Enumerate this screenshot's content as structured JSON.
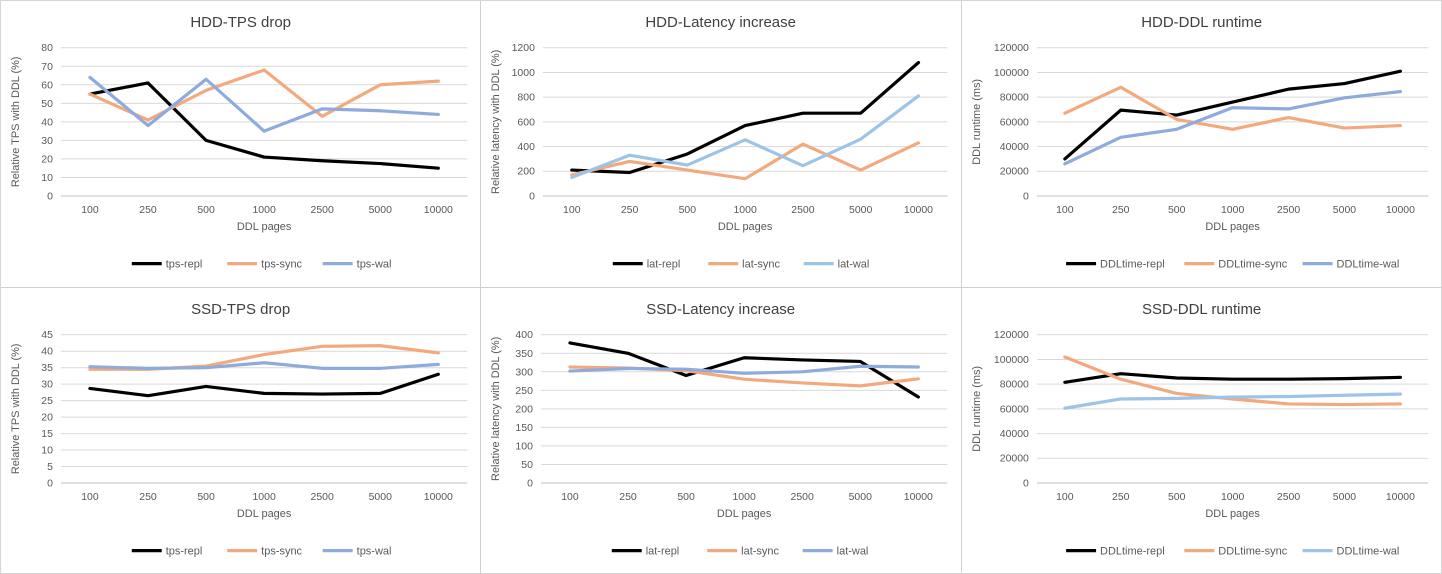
{
  "colors": {
    "grid_line": "#d9d9d9",
    "axis_line": "#bfbfbf",
    "tick_text": "#595959",
    "title_text": "#404040",
    "panel_divider": "#cfcfcf",
    "series_repl": "#000000",
    "series_sync": "#f3a97e",
    "series_wal_medium": "#8faadc",
    "series_wal_light": "#9dc3e6"
  },
  "chart_data": [
    {
      "type": "line",
      "title": "HDD-TPS drop",
      "ylabel": "Relative TPS with DDL (%)",
      "xlabel": "DDL pages",
      "categories": [
        "100",
        "250",
        "500",
        "1000",
        "2500",
        "5000",
        "10000"
      ],
      "ylim": [
        0,
        80
      ],
      "ystep": 10,
      "grid": true,
      "legend_position": "bottom",
      "series": [
        {
          "name": "tps-repl",
          "color": "#000000",
          "values": [
            55,
            61,
            30,
            21,
            19,
            17.5,
            15
          ]
        },
        {
          "name": "tps-sync",
          "color": "#f3a97e",
          "values": [
            55,
            41,
            57,
            68,
            43,
            60,
            62
          ]
        },
        {
          "name": "tps-wal",
          "color": "#8faadc",
          "values": [
            64,
            38,
            63,
            35,
            47,
            46,
            44
          ]
        }
      ]
    },
    {
      "type": "line",
      "title": "HDD-Latency increase",
      "ylabel": "Relative latency with DDL (%)",
      "xlabel": "DDL pages",
      "categories": [
        "100",
        "250",
        "500",
        "1000",
        "2500",
        "5000",
        "10000"
      ],
      "ylim": [
        0,
        1200
      ],
      "ystep": 200,
      "grid": true,
      "legend_position": "bottom",
      "series": [
        {
          "name": "lat-repl",
          "color": "#000000",
          "values": [
            210,
            190,
            340,
            570,
            670,
            670,
            1080
          ]
        },
        {
          "name": "lat-sync",
          "color": "#f3a97e",
          "values": [
            170,
            280,
            210,
            140,
            420,
            210,
            430
          ]
        },
        {
          "name": "lat-wal",
          "color": "#9dc3e6",
          "values": [
            150,
            330,
            250,
            455,
            245,
            460,
            810
          ]
        }
      ]
    },
    {
      "type": "line",
      "title": "HDD-DDL runtime",
      "ylabel": "DDL runtime (ms)",
      "xlabel": "DDL pages",
      "categories": [
        "100",
        "250",
        "500",
        "1000",
        "2500",
        "5000",
        "10000"
      ],
      "ylim": [
        0,
        120000
      ],
      "ystep": 20000,
      "grid": true,
      "legend_position": "bottom",
      "series": [
        {
          "name": "DDLtime-repl",
          "color": "#000000",
          "values": [
            30000,
            69500,
            65500,
            76000,
            86500,
            91000,
            101000
          ]
        },
        {
          "name": "DDLtime-sync",
          "color": "#f3a97e",
          "values": [
            67000,
            88000,
            62000,
            54000,
            63500,
            55000,
            57000
          ]
        },
        {
          "name": "DDLtime-wal",
          "color": "#8faadc",
          "values": [
            26000,
            47500,
            54000,
            71500,
            70500,
            79500,
            84500
          ]
        }
      ]
    },
    {
      "type": "line",
      "title": "SSD-TPS drop",
      "ylabel": "Relative TPS with DDL (%)",
      "xlabel": "DDL pages",
      "categories": [
        "100",
        "250",
        "500",
        "1000",
        "2500",
        "5000",
        "10000"
      ],
      "ylim": [
        0,
        45
      ],
      "ystep": 5,
      "grid": true,
      "legend_position": "bottom",
      "series": [
        {
          "name": "tps-repl",
          "color": "#000000",
          "values": [
            28.7,
            26.5,
            29.3,
            27.2,
            27,
            27.2,
            33
          ]
        },
        {
          "name": "tps-sync",
          "color": "#f3a97e",
          "values": [
            34.5,
            34.5,
            35.5,
            39,
            41.5,
            41.7,
            39.5
          ]
        },
        {
          "name": "tps-wal",
          "color": "#8faadc",
          "values": [
            35.3,
            34.8,
            35,
            36.5,
            34.8,
            34.8,
            36
          ]
        }
      ]
    },
    {
      "type": "line",
      "title": "SSD-Latency increase",
      "ylabel": "Relative latency with DDL (%)",
      "xlabel": "DDL pages",
      "categories": [
        "100",
        "250",
        "500",
        "1000",
        "2500",
        "5000",
        "10000"
      ],
      "ylim": [
        0,
        400
      ],
      "ystep": 50,
      "grid": true,
      "legend_position": "bottom",
      "series": [
        {
          "name": "lat-repl",
          "color": "#000000",
          "values": [
            378,
            350,
            290,
            338,
            332,
            328,
            232
          ]
        },
        {
          "name": "lat-sync",
          "color": "#f3a97e",
          "values": [
            313,
            310,
            303,
            280,
            270,
            262,
            281
          ]
        },
        {
          "name": "lat-wal",
          "color": "#8faadc",
          "values": [
            302,
            309,
            307,
            296,
            300,
            315,
            313
          ]
        }
      ]
    },
    {
      "type": "line",
      "title": "SSD-DDL runtime",
      "ylabel": "DDL runtime (ms)",
      "xlabel": "DDL pages",
      "categories": [
        "100",
        "250",
        "500",
        "1000",
        "2500",
        "5000",
        "10000"
      ],
      "ylim": [
        0,
        120000
      ],
      "ystep": 20000,
      "grid": true,
      "legend_position": "bottom",
      "series": [
        {
          "name": "DDLtime-repl",
          "color": "#000000",
          "values": [
            81500,
            88500,
            85000,
            84000,
            84000,
            84500,
            85500
          ]
        },
        {
          "name": "DDLtime-sync",
          "color": "#f3a97e",
          "values": [
            102000,
            84000,
            72500,
            68000,
            64000,
            63500,
            64000
          ]
        },
        {
          "name": "DDLtime-wal",
          "color": "#9dc3e6",
          "values": [
            60500,
            68000,
            68500,
            69500,
            70000,
            71000,
            72000
          ]
        }
      ]
    }
  ]
}
